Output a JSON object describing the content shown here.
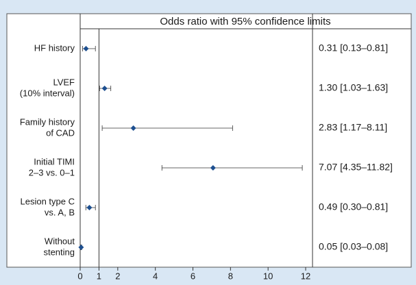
{
  "chart_data": {
    "type": "forest",
    "title": "Odds ratio with 95% confidence limits",
    "categories": [
      [
        "HF history"
      ],
      [
        "LVEF",
        "(10% interval)"
      ],
      [
        "Family history",
        "of CAD"
      ],
      [
        "Initial TIMI",
        "2–3 vs. 0–1"
      ],
      [
        "Lesion type C",
        "vs. A, B"
      ],
      [
        "Without",
        "stenting"
      ]
    ],
    "values": [
      0.31,
      1.3,
      2.83,
      7.07,
      0.49,
      0.05
    ],
    "lower": [
      0.13,
      1.03,
      1.17,
      4.35,
      0.3,
      0.03
    ],
    "upper": [
      0.81,
      1.63,
      8.11,
      11.82,
      0.81,
      0.08
    ],
    "value_labels": [
      "0.31 [0.13–0.81]",
      "1.30 [1.03–1.63]",
      "2.83 [1.17–8.11]",
      "7.07 [4.35–11.82]",
      "0.49 [0.30–0.81]",
      "0.05 [0.03–0.08]"
    ],
    "color": "#1d4f8f",
    "reference": 1,
    "xlim": [
      0,
      12
    ],
    "xticks": [
      0,
      1,
      2,
      4,
      6,
      8,
      10,
      12
    ]
  }
}
